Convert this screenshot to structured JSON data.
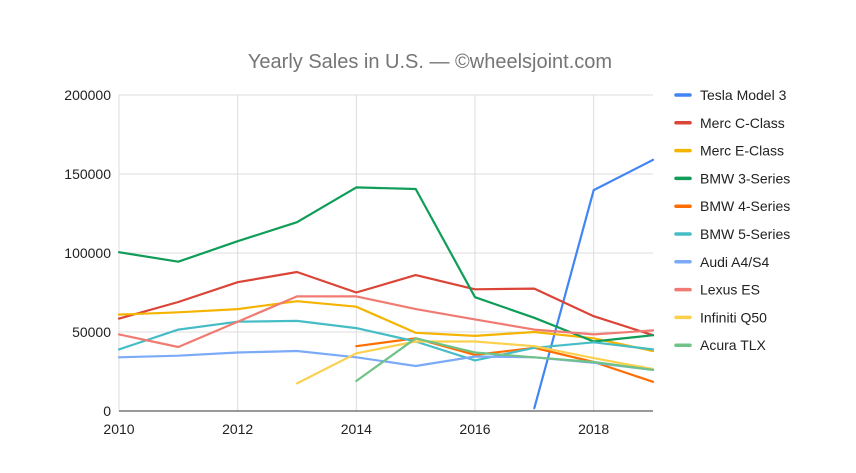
{
  "chart_data": {
    "type": "line",
    "title": "Yearly Sales in U.S. — ©wheelsjoint.com",
    "xlabel": "",
    "ylabel": "",
    "xlim": [
      2010,
      2019
    ],
    "ylim": [
      0,
      200000
    ],
    "x_ticks": [
      2010,
      2012,
      2014,
      2016,
      2018
    ],
    "x_tick_labels": [
      "2010",
      "2012",
      "2014",
      "2016",
      "2018"
    ],
    "y_ticks": [
      0,
      50000,
      100000,
      150000,
      200000
    ],
    "y_tick_labels": [
      "0",
      "50000",
      "100000",
      "150000",
      "200000"
    ],
    "grid": true,
    "legend_position": "right",
    "series": [
      {
        "name": "Tesla Model 3",
        "color": "#4285f4",
        "x": [
          2017,
          2018,
          2019
        ],
        "values": [
          1800,
          139800,
          158900
        ]
      },
      {
        "name": "Merc C-Class",
        "color": "#db4437",
        "x": [
          2010,
          2011,
          2012,
          2013,
          2014,
          2015,
          2016,
          2017,
          2018,
          2019
        ],
        "values": [
          58500,
          69000,
          81500,
          88000,
          75000,
          86000,
          77000,
          77500,
          60000,
          48000
        ]
      },
      {
        "name": "Merc E-Class",
        "color": "#f4b400",
        "x": [
          2010,
          2011,
          2012,
          2013,
          2014,
          2015,
          2016,
          2017,
          2018,
          2019
        ],
        "values": [
          61000,
          62500,
          64500,
          69500,
          66000,
          49500,
          47500,
          50000,
          46000,
          38000
        ]
      },
      {
        "name": "BMW 3-Series",
        "color": "#0f9d58",
        "x": [
          2010,
          2011,
          2012,
          2013,
          2014,
          2015,
          2016,
          2017,
          2018,
          2019
        ],
        "values": [
          100500,
          94500,
          107500,
          119500,
          141500,
          140500,
          72000,
          59000,
          44000,
          48000
        ]
      },
      {
        "name": "BMW 4-Series",
        "color": "#ff6d01",
        "x": [
          2014,
          2015,
          2016,
          2017,
          2018,
          2019
        ],
        "values": [
          41000,
          46000,
          35500,
          40000,
          31000,
          18500
        ]
      },
      {
        "name": "BMW 5-Series",
        "color": "#46bdc6",
        "x": [
          2010,
          2011,
          2012,
          2013,
          2014,
          2015,
          2016,
          2017,
          2018,
          2019
        ],
        "values": [
          39000,
          51500,
          56500,
          57000,
          52500,
          44000,
          32000,
          40000,
          43500,
          39000
        ]
      },
      {
        "name": "Audi A4/S4",
        "color": "#7baaf7",
        "x": [
          2010,
          2011,
          2012,
          2013,
          2014,
          2015,
          2016,
          2017,
          2018,
          2019
        ],
        "values": [
          34000,
          35000,
          37000,
          38000,
          34000,
          28500,
          34500,
          34000,
          30500,
          26000
        ]
      },
      {
        "name": "Lexus ES",
        "color": "#f07b72",
        "x": [
          2010,
          2011,
          2012,
          2013,
          2014,
          2015,
          2016,
          2017,
          2018,
          2019
        ],
        "values": [
          48500,
          40500,
          56500,
          72500,
          72500,
          64500,
          58000,
          51500,
          48500,
          51000
        ]
      },
      {
        "name": "Infiniti Q50",
        "color": "#fcd04f",
        "x": [
          2013,
          2014,
          2015,
          2016,
          2017,
          2018,
          2019
        ],
        "values": [
          17500,
          36500,
          44000,
          44000,
          41000,
          33500,
          26500
        ]
      },
      {
        "name": "Acura TLX",
        "color": "#71c287",
        "x": [
          2014,
          2015,
          2016,
          2017,
          2018,
          2019
        ],
        "values": [
          19000,
          46000,
          37000,
          34000,
          31000,
          26000
        ]
      }
    ]
  }
}
